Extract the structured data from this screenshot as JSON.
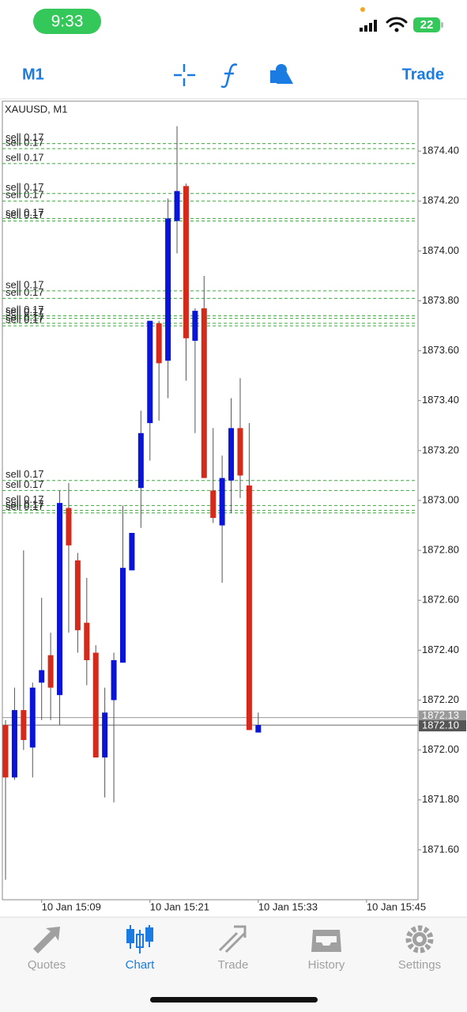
{
  "status_bar": {
    "time": "9:33",
    "battery": "22"
  },
  "toolbar": {
    "timeframe": "M1",
    "trade": "Trade"
  },
  "chart_data": {
    "type": "candlestick",
    "title": "XAUUSD, M1",
    "up_color": "#0a14d8",
    "down_color": "#d42a1c",
    "open": [
      1872.1,
      1871.89,
      1872.16,
      1872.01,
      1872.27,
      1872.38,
      1872.22,
      1872.97,
      1872.76,
      1872.51,
      1872.39,
      1871.97,
      1872.2,
      1872.35,
      1872.72,
      1873.05,
      1873.31,
      1873.71,
      1873.56,
      1874.12,
      1874.26,
      1873.64,
      1873.77,
      1873.04,
      1872.9,
      1873.08,
      1873.29,
      1873.06,
      1872.07
    ],
    "high": [
      1872.12,
      1872.25,
      1872.8,
      1872.27,
      1872.61,
      1872.47,
      1873.04,
      1873.07,
      1872.79,
      1872.69,
      1872.42,
      1872.25,
      1872.39,
      1872.98,
      1872.87,
      1873.36,
      1873.72,
      1873.72,
      1874.21,
      1874.5,
      1874.27,
      1873.77,
      1873.9,
      1873.29,
      1873.18,
      1873.41,
      1873.49,
      1873.31,
      1872.15
    ],
    "low": [
      1871.48,
      1871.88,
      1872.0,
      1871.89,
      1872.12,
      1872.12,
      1872.1,
      1872.47,
      1872.39,
      1872.26,
      1871.97,
      1871.81,
      1871.79,
      1872.35,
      1872.72,
      1872.89,
      1873.16,
      1873.32,
      1873.41,
      1873.99,
      1873.48,
      1873.27,
      1873.09,
      1872.91,
      1872.67,
      1872.95,
      1873.01,
      1872.08,
      1872.07
    ],
    "close": [
      1871.89,
      1872.16,
      1872.04,
      1872.25,
      1872.32,
      1872.25,
      1872.99,
      1872.82,
      1872.48,
      1872.36,
      1871.97,
      1872.15,
      1872.36,
      1872.73,
      1872.87,
      1873.27,
      1873.72,
      1873.55,
      1874.13,
      1874.24,
      1873.65,
      1873.76,
      1873.09,
      1872.93,
      1873.09,
      1873.29,
      1873.1,
      1872.08,
      1872.1
    ],
    "xlim": [
      -0.35,
      45.7
    ],
    "xticks": [
      {
        "value": 4,
        "label": "10 Jan 15:09"
      },
      {
        "value": 16,
        "label": "10 Jan 15:21"
      },
      {
        "value": 28,
        "label": "10 Jan 15:33"
      },
      {
        "value": 40,
        "label": "10 Jan 15:45"
      }
    ],
    "ylim": [
      1871.4,
      1874.6
    ],
    "yticks": [
      {
        "value": 1874.4,
        "label": "1874.40"
      },
      {
        "value": 1874.2,
        "label": "1874.20"
      },
      {
        "value": 1874.0,
        "label": "1874.00"
      },
      {
        "value": 1873.8,
        "label": "1873.80"
      },
      {
        "value": 1873.6,
        "label": "1873.60"
      },
      {
        "value": 1873.4,
        "label": "1873.40"
      },
      {
        "value": 1873.2,
        "label": "1873.20"
      },
      {
        "value": 1873.0,
        "label": "1873.00"
      },
      {
        "value": 1872.8,
        "label": "1872.80"
      },
      {
        "value": 1872.6,
        "label": "1872.60"
      },
      {
        "value": 1872.4,
        "label": "1872.40"
      },
      {
        "value": 1872.2,
        "label": "1872.20"
      },
      {
        "value": 1872.0,
        "label": "1872.00"
      },
      {
        "value": 1871.8,
        "label": "1871.80"
      },
      {
        "value": 1871.6,
        "label": "1871.60"
      }
    ],
    "ask": {
      "value": 1872.13,
      "label": "1872.13"
    },
    "bid": {
      "value": 1872.1,
      "label": "1872.10"
    },
    "order_color": "#3aaa3a",
    "orders": [
      {
        "label": "sell 0.17",
        "price": 1874.43
      },
      {
        "label": "sell 0.17",
        "price": 1874.41
      },
      {
        "label": "sell 0.17",
        "price": 1874.35
      },
      {
        "label": "sell 0.17",
        "price": 1874.23
      },
      {
        "label": "sell 0.17",
        "price": 1874.2
      },
      {
        "label": "sell 0.17",
        "price": 1874.13
      },
      {
        "label": "sell 0.17",
        "price": 1874.12
      },
      {
        "label": "sell 0.17",
        "price": 1873.84
      },
      {
        "label": "sell 0.17",
        "price": 1873.81
      },
      {
        "label": "sell 0.17",
        "price": 1873.74
      },
      {
        "label": "sell 0.17",
        "price": 1873.73
      },
      {
        "label": "sell 0.17",
        "price": 1873.71
      },
      {
        "label": "sell 0.17",
        "price": 1873.7
      },
      {
        "label": "sell 0.17",
        "price": 1873.08
      },
      {
        "label": "sell 0.17",
        "price": 1873.04
      },
      {
        "label": "sell 0.17",
        "price": 1872.98
      },
      {
        "label": "sell 0.17",
        "price": 1872.96
      },
      {
        "label": "sell 0.17",
        "price": 1872.95
      }
    ]
  },
  "tab_bar": {
    "tabs": [
      "Quotes",
      "Chart",
      "Trade",
      "History",
      "Settings"
    ],
    "active": 1
  }
}
